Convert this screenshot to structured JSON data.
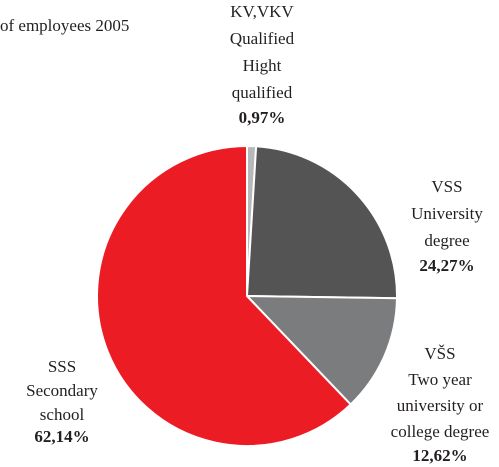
{
  "chart_data": {
    "type": "pie",
    "subtitle": "of employees 2005",
    "categories": [
      "KV,VKV",
      "VSS",
      "VŠS",
      "SSS"
    ],
    "descriptions": [
      [
        "Qualified",
        "Hight",
        "qualified"
      ],
      [
        "University",
        "degree"
      ],
      [
        "Two year",
        "university or",
        "college degree"
      ],
      [
        "Secondary",
        "school"
      ]
    ],
    "values": [
      0.97,
      24.27,
      12.62,
      62.14
    ],
    "value_labels": [
      "0,97%",
      "24,27%",
      "12,62%",
      "62,14%"
    ],
    "colors": [
      "#b7b8ba",
      "#545454",
      "#7b7c7e",
      "#ec1c24"
    ]
  }
}
